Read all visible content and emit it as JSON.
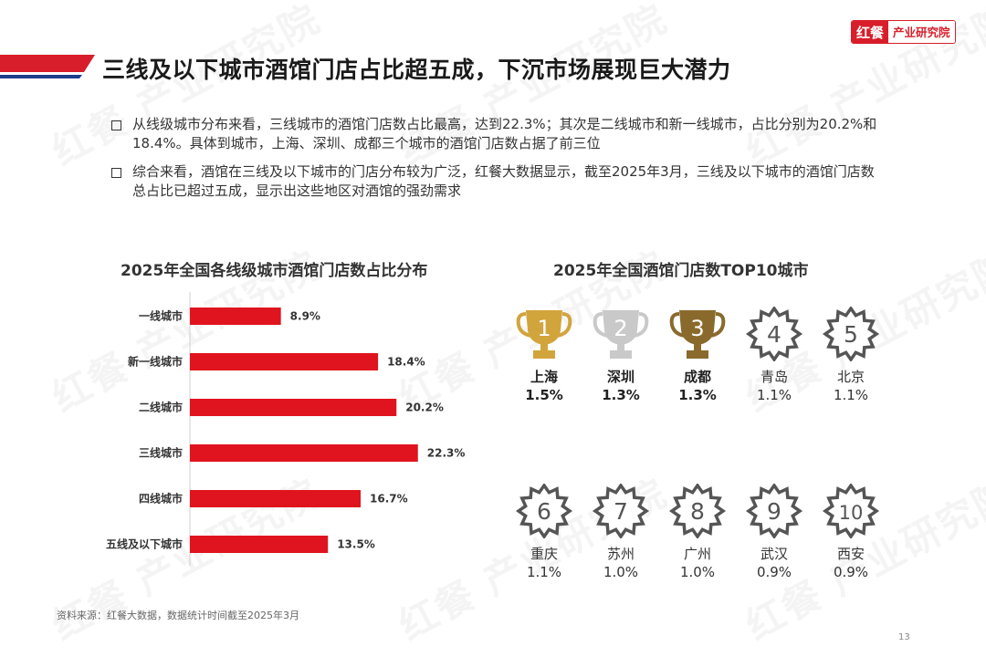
{
  "header": {
    "logo_brand": "红餐",
    "logo_org": "产业研究院",
    "title": "三线及以下城市酒馆门店占比超五成，下沉市场展现巨大潜力"
  },
  "bullets": [
    "从线级城市分布来看，三线城市的酒馆门店数占比最高，达到22.3%；其次是二线城市和新一线城市，占比分别为20.2%和18.4%。具体到城市，上海、深圳、成都三个城市的酒馆门店数占据了前三位",
    "综合来看，酒馆在三线及以下城市的门店分布较为广泛，红餐大数据显示，截至2025年3月，三线及以下城市的酒馆门店数总占比已超过五成，显示出这些地区对酒馆的强劲需求"
  ],
  "watermark": "红餐 产业研究院",
  "chart_data": [
    {
      "type": "bar",
      "orientation": "horizontal",
      "title": "2025年全国各线级城市酒馆门店数占比分布",
      "categories": [
        "一线城市",
        "新一线城市",
        "二线城市",
        "三线城市",
        "四线城市",
        "五线及以下城市"
      ],
      "values": [
        8.9,
        18.4,
        20.2,
        22.3,
        16.7,
        13.5
      ],
      "value_labels": [
        "8.9%",
        "18.4%",
        "20.2%",
        "22.3%",
        "16.7%",
        "13.5%"
      ],
      "xlim": [
        0,
        25
      ],
      "bar_color": "#e0141e",
      "grid": false
    },
    {
      "type": "table",
      "title": "2025年全国酒馆门店数TOP10城市",
      "rows": [
        {
          "rank": "1",
          "city": "上海",
          "share": "1.5%",
          "icon": "gold-trophy-icon",
          "color": "#d2a43c"
        },
        {
          "rank": "2",
          "city": "深圳",
          "share": "1.3%",
          "icon": "silver-trophy-icon",
          "color": "#c9c9c9"
        },
        {
          "rank": "3",
          "city": "成都",
          "share": "1.3%",
          "icon": "bronze-trophy-icon",
          "color": "#8a6a2c"
        },
        {
          "rank": "4",
          "city": "青岛",
          "share": "1.1%",
          "icon": "rank-badge-icon",
          "color": "#555555"
        },
        {
          "rank": "5",
          "city": "北京",
          "share": "1.1%",
          "icon": "rank-badge-icon",
          "color": "#555555"
        },
        {
          "rank": "6",
          "city": "重庆",
          "share": "1.1%",
          "icon": "rank-badge-icon",
          "color": "#555555"
        },
        {
          "rank": "7",
          "city": "苏州",
          "share": "1.0%",
          "icon": "rank-badge-icon",
          "color": "#555555"
        },
        {
          "rank": "8",
          "city": "广州",
          "share": "1.0%",
          "icon": "rank-badge-icon",
          "color": "#555555"
        },
        {
          "rank": "9",
          "city": "武汉",
          "share": "0.9%",
          "icon": "rank-badge-icon",
          "color": "#555555"
        },
        {
          "rank": "10",
          "city": "西安",
          "share": "0.9%",
          "icon": "rank-badge-icon",
          "color": "#555555"
        }
      ]
    }
  ],
  "footer": {
    "source": "资料来源：红餐大数据，数据统计时间截至2025年3月",
    "page_number": "13"
  },
  "colors": {
    "accent_red": "#d81e2a",
    "accent_blue": "#1e3c8c"
  }
}
